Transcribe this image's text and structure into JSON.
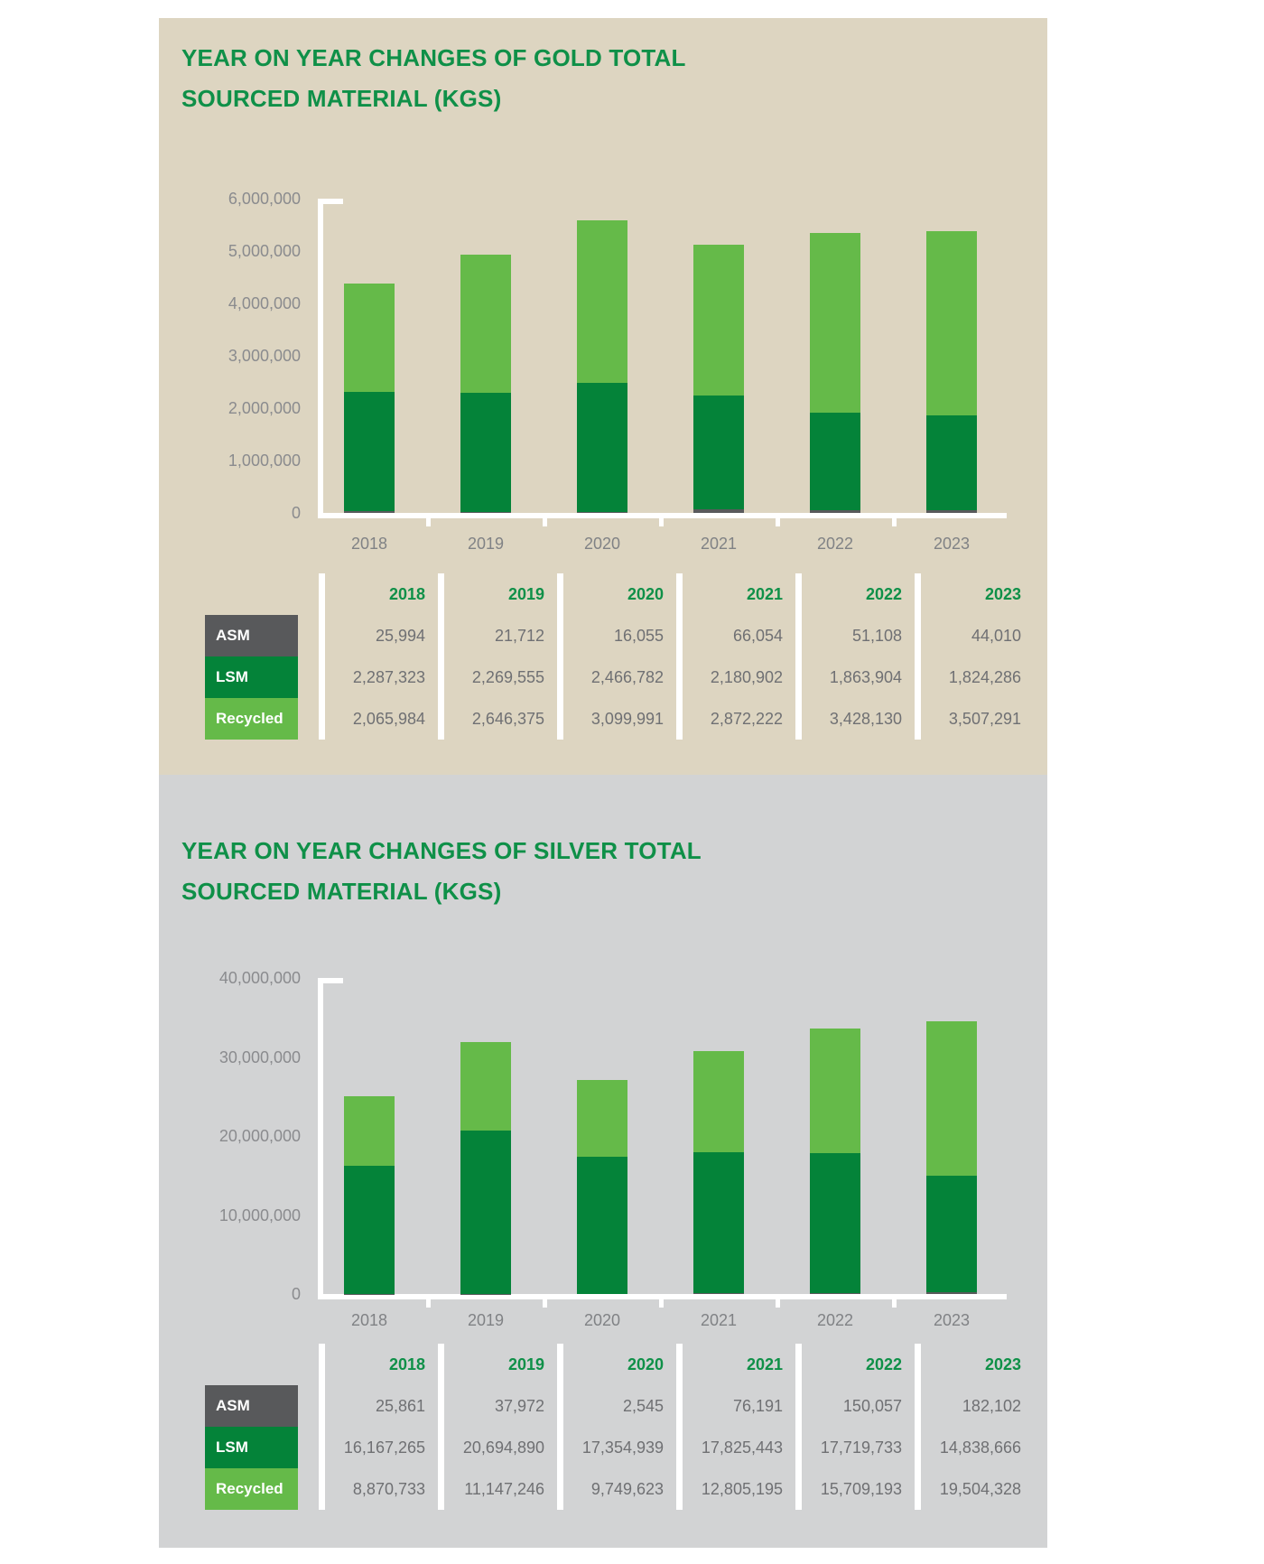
{
  "colors": {
    "title": "#0f9048",
    "year_header": "#0f9048",
    "asm": "#58595b",
    "lsm": "#048339",
    "recycled": "#65ba49",
    "axis_line": "#ffffff",
    "separator": "#ffffff",
    "tick_text": "#8a8b8e",
    "xlabel_text": "#808285",
    "value_text": "#6f7073",
    "label_text": "#ffffff",
    "gold_panel_bg": "#ddd5c1",
    "silver_panel_bg": "#d2d3d4"
  },
  "chart_data": [
    {
      "id": "gold",
      "type": "bar",
      "stacked": true,
      "title_lines": [
        "YEAR ON YEAR CHANGES OF GOLD TOTAL",
        "SOURCED MATERIAL (KGS)"
      ],
      "categories": [
        "2018",
        "2019",
        "2020",
        "2021",
        "2022",
        "2023"
      ],
      "series": [
        {
          "name": "ASM",
          "values": [
            25994,
            21712,
            16055,
            66054,
            51108,
            44010
          ]
        },
        {
          "name": "LSM",
          "values": [
            2287323,
            2269555,
            2466782,
            2180902,
            1863904,
            1824286
          ]
        },
        {
          "name": "Recycled",
          "values": [
            2065984,
            2646375,
            3099991,
            2872222,
            3428130,
            3507291
          ]
        }
      ],
      "stack_order_bottom_to_top": [
        "ASM",
        "LSM",
        "Recycled"
      ],
      "ylim": [
        0,
        6000000
      ],
      "ytick_step": 1000000,
      "ytick_labels": [
        "6,000,000",
        "5,000,000",
        "4,000,000",
        "3,000,000",
        "2,000,000",
        "1,000,000",
        "0"
      ],
      "grid": false,
      "legend_position": "table-below-left-labels",
      "background": "#ddd5c1",
      "table": {
        "column_headers": [
          "2018",
          "2019",
          "2020",
          "2021",
          "2022",
          "2023"
        ],
        "rows": [
          {
            "label": "ASM",
            "values": [
              "25,994",
              "21,712",
              "16,055",
              "66,054",
              "51,108",
              "44,010"
            ]
          },
          {
            "label": "LSM",
            "values": [
              "2,287,323",
              "2,269,555",
              "2,466,782",
              "2,180,902",
              "1,863,904",
              "1,824,286"
            ]
          },
          {
            "label": "Recycled",
            "values": [
              "2,065,984",
              "2,646,375",
              "3,099,991",
              "2,872,222",
              "3,428,130",
              "3,507,291"
            ]
          }
        ]
      }
    },
    {
      "id": "silver",
      "type": "bar",
      "stacked": true,
      "title_lines": [
        "YEAR ON YEAR CHANGES OF SILVER TOTAL",
        "SOURCED MATERIAL (KGS)"
      ],
      "categories": [
        "2018",
        "2019",
        "2020",
        "2021",
        "2022",
        "2023"
      ],
      "series": [
        {
          "name": "ASM",
          "values": [
            25861,
            37972,
            2545,
            76191,
            150057,
            182102
          ]
        },
        {
          "name": "LSM",
          "values": [
            16167265,
            20694890,
            17354939,
            17825443,
            17719733,
            14838666
          ]
        },
        {
          "name": "Recycled",
          "values": [
            8870733,
            11147246,
            9749623,
            12805195,
            15709193,
            19504328
          ]
        }
      ],
      "stack_order_bottom_to_top": [
        "ASM",
        "LSM",
        "Recycled"
      ],
      "ylim": [
        0,
        40000000
      ],
      "ytick_step": 10000000,
      "ytick_labels": [
        "40,000,000",
        "30,000,000",
        "20,000,000",
        "10,000,000",
        "0"
      ],
      "grid": false,
      "legend_position": "table-below-left-labels",
      "background": "#d2d3d4",
      "table": {
        "column_headers": [
          "2018",
          "2019",
          "2020",
          "2021",
          "2022",
          "2023"
        ],
        "rows": [
          {
            "label": "ASM",
            "values": [
              "25,861",
              "37,972",
              "2,545",
              "76,191",
              "150,057",
              "182,102"
            ]
          },
          {
            "label": "LSM",
            "values": [
              "16,167,265",
              "20,694,890",
              "17,354,939",
              "17,825,443",
              "17,719,733",
              "14,838,666"
            ]
          },
          {
            "label": "Recycled",
            "values": [
              "8,870,733",
              "11,147,246",
              "9,749,623",
              "12,805,195",
              "15,709,193",
              "19,504,328"
            ]
          }
        ]
      }
    }
  ]
}
